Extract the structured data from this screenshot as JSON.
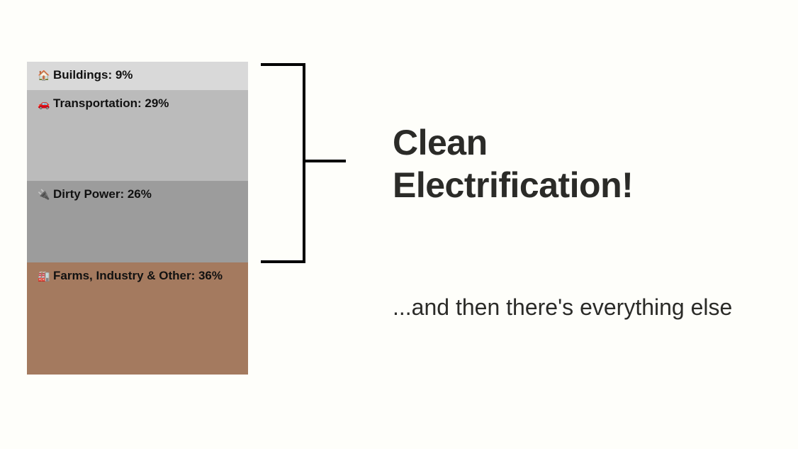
{
  "chart_data": {
    "type": "bar",
    "subtype": "stacked-100-percent",
    "categories": [
      "Buildings",
      "Transportation",
      "Dirty Power",
      "Farms, Industry & Other"
    ],
    "values": [
      9,
      29,
      26,
      36
    ],
    "labels": [
      "Buildings: 9%",
      "Transportation: 29%",
      "Dirty Power: 26%",
      "Farms, Industry & Other: 36%"
    ],
    "icons": [
      "house-icon",
      "car-icon",
      "plug-icon",
      "factory-icon"
    ],
    "colors": [
      "#d9d9d9",
      "#bbbbbb",
      "#9c9c9c",
      "#a47a5f"
    ],
    "grid": false,
    "legend": "none"
  },
  "annotation": {
    "headline_lines": [
      "Clean",
      "Electrification!"
    ],
    "subline": "...and then there's everything else",
    "bracket_color": "#000000"
  }
}
